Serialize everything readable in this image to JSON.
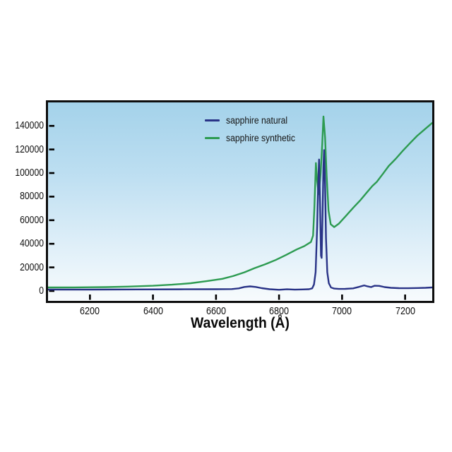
{
  "colors": {
    "plot_border": "#0d0d0d",
    "background_top": "#a4d2ea",
    "background_bottom": "#f7fbfd",
    "tick": "#000000",
    "natural_blue": "#293387",
    "synthetic_green": "#2d9b51"
  },
  "legend": {
    "items": [
      {
        "label": "sapphire natural",
        "color": "#293387"
      },
      {
        "label": "sapphire synthetic",
        "color": "#2d9b51"
      }
    ]
  },
  "chart_data": {
    "type": "line",
    "title": "",
    "xlabel": "Wavelength (Å)",
    "ylabel": "",
    "xlim": [
      6067,
      7286
    ],
    "ylim": [
      -8400,
      159900
    ],
    "xticks": [
      6200,
      6400,
      6600,
      6800,
      7000,
      7200
    ],
    "yticks": [
      0,
      20000,
      40000,
      60000,
      80000,
      100000,
      120000,
      140000
    ],
    "grid": false,
    "legend_position": "top-center-inside",
    "series": [
      {
        "name": "sapphire natural",
        "color": "#293387",
        "x": [
          6067,
          6200,
          6350,
          6500,
          6600,
          6650,
          6672,
          6690,
          6708,
          6726,
          6745,
          6770,
          6800,
          6825,
          6850,
          6875,
          6895,
          6905,
          6911,
          6916,
          6921,
          6924,
          6927,
          6930,
          6933,
          6935,
          6938,
          6941,
          6943,
          6946,
          6949,
          6953,
          6958,
          6965,
          6975,
          6990,
          7010,
          7035,
          7055,
          7070,
          7082,
          7092,
          7103,
          7118,
          7135,
          7155,
          7180,
          7210,
          7240,
          7265,
          7286
        ],
        "y": [
          1200,
          1200,
          1300,
          1400,
          1500,
          1600,
          2200,
          3400,
          3900,
          3400,
          2400,
          1500,
          1000,
          1400,
          1100,
          1300,
          1500,
          2200,
          5500,
          16000,
          55000,
          90000,
          111500,
          75000,
          30000,
          28000,
          65000,
          105000,
          119500,
          90000,
          45000,
          16000,
          6500,
          3000,
          2000,
          1700,
          1800,
          2200,
          3600,
          4700,
          3800,
          3300,
          4400,
          4300,
          3300,
          2700,
          2400,
          2300,
          2500,
          2700,
          3000
        ]
      },
      {
        "name": "sapphire synthetic",
        "color": "#2d9b51",
        "x": [
          6067,
          6150,
          6250,
          6320,
          6400,
          6460,
          6520,
          6570,
          6620,
          6654,
          6690,
          6721,
          6755,
          6789,
          6822,
          6856,
          6880,
          6901,
          6908,
          6912,
          6917,
          6921,
          6926,
          6932,
          6937,
          6941,
          6946,
          6951,
          6957,
          6964,
          6975,
          6990,
          7010,
          7035,
          7058,
          7080,
          7096,
          7110,
          7130,
          7148,
          7170,
          7193,
          7215,
          7238,
          7262,
          7286
        ],
        "y": [
          3000,
          3050,
          3300,
          3700,
          4400,
          5300,
          6600,
          8300,
          10300,
          12600,
          15800,
          19200,
          22500,
          26200,
          30500,
          35200,
          38000,
          41500,
          47000,
          70000,
          108500,
          93000,
          82000,
          100000,
          125000,
          148000,
          130000,
          98000,
          68000,
          56500,
          54200,
          57100,
          63000,
          70500,
          77000,
          84000,
          89000,
          92500,
          99500,
          106000,
          112000,
          119000,
          125200,
          131500,
          137000,
          142500
        ]
      }
    ]
  }
}
